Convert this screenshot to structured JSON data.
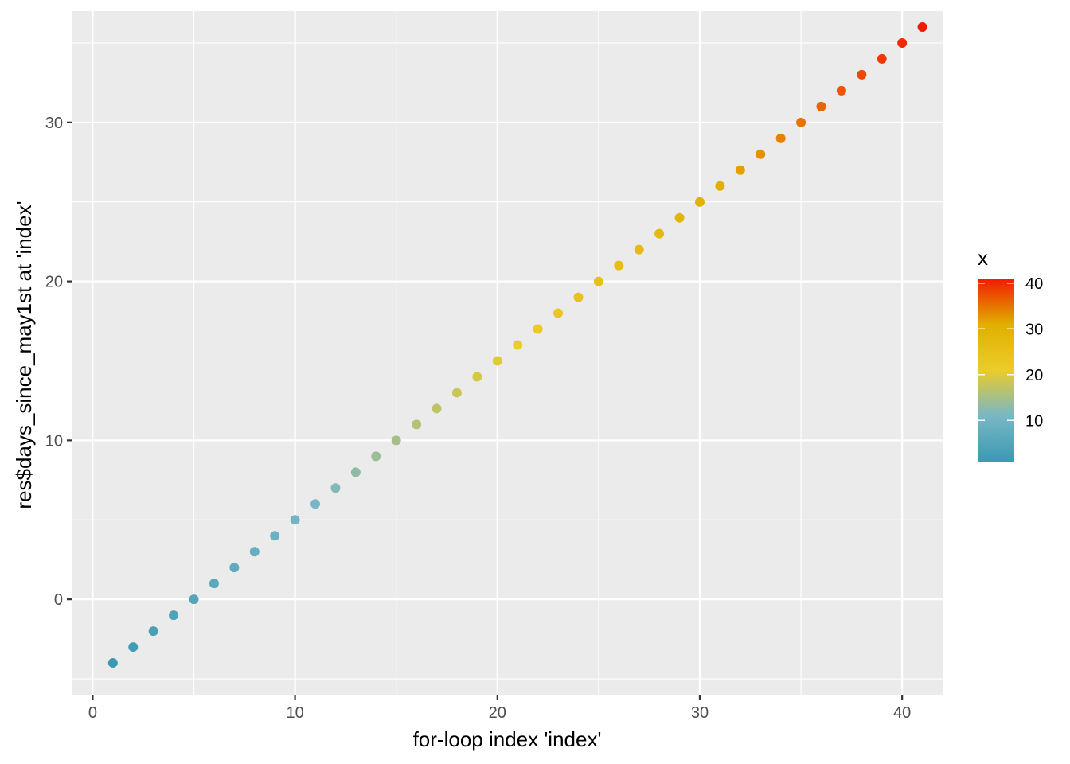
{
  "chart_data": {
    "type": "scatter",
    "title": "",
    "xlabel": "for-loop index 'index'",
    "ylabel": "res$days_since_may1st at 'index'",
    "xlim": [
      -1,
      42
    ],
    "ylim": [
      -6,
      37
    ],
    "x_ticks": [
      0,
      10,
      20,
      30,
      40
    ],
    "y_ticks": [
      0,
      10,
      20,
      30
    ],
    "grid": true,
    "background": "#EBEBEB",
    "x": [
      1,
      2,
      3,
      4,
      5,
      6,
      7,
      8,
      9,
      10,
      11,
      12,
      13,
      14,
      15,
      16,
      17,
      18,
      19,
      20,
      21,
      22,
      23,
      24,
      25,
      26,
      27,
      28,
      29,
      30,
      31,
      32,
      33,
      34,
      35,
      36,
      37,
      38,
      39,
      40,
      41
    ],
    "y": [
      -4,
      -3,
      -2,
      -1,
      0,
      1,
      2,
      3,
      4,
      5,
      6,
      7,
      8,
      9,
      10,
      11,
      12,
      13,
      14,
      15,
      16,
      17,
      18,
      19,
      20,
      21,
      22,
      23,
      24,
      25,
      26,
      27,
      28,
      29,
      30,
      31,
      32,
      33,
      34,
      35,
      36
    ],
    "color_by": "x",
    "legend": {
      "title": "x",
      "position": "right",
      "range": [
        1,
        41
      ],
      "ticks": [
        10,
        20,
        30,
        40
      ],
      "gradient": [
        "#3B9AB2",
        "#78B7C5",
        "#EBCC2A",
        "#E1AF00",
        "#F21A00"
      ]
    }
  }
}
